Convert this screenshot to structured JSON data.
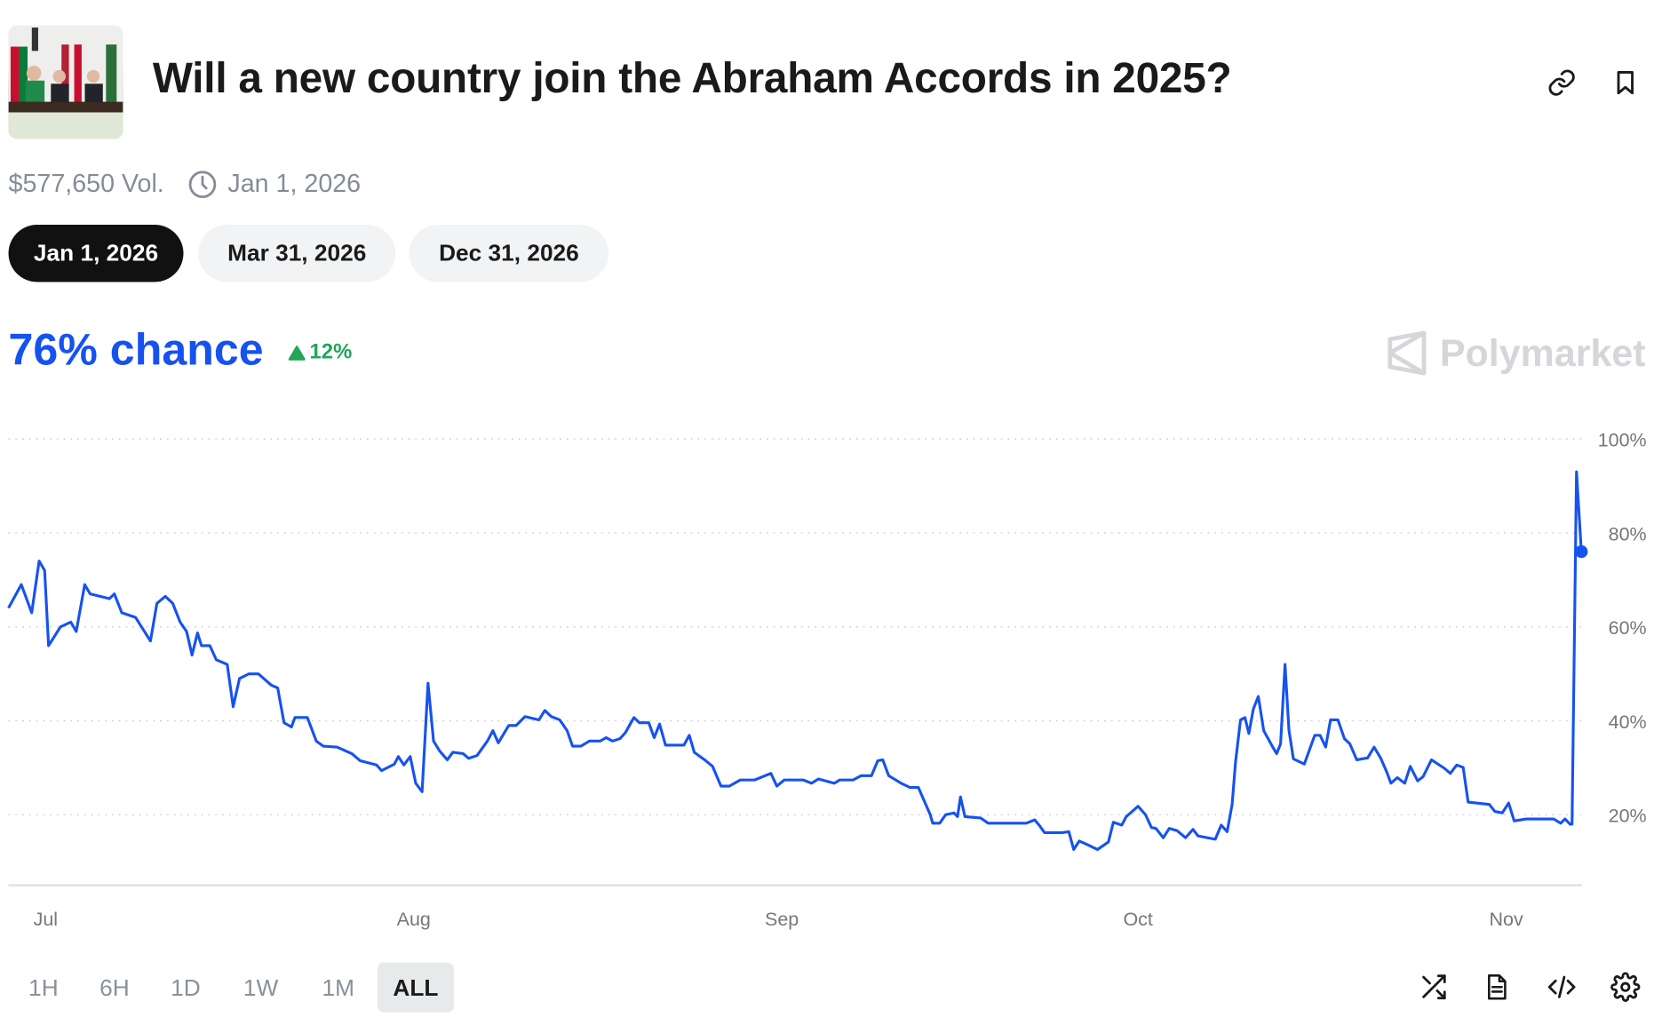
{
  "header": {
    "title": "Will a new country join the Abraham Accords in 2025?",
    "volume": "$577,650 Vol.",
    "end_date": "Jan 1, 2026",
    "icons": [
      "link-icon",
      "bookmark-icon",
      "clock-icon"
    ]
  },
  "date_options": [
    {
      "label": "Jan 1, 2026",
      "active": true
    },
    {
      "label": "Mar 31, 2026",
      "active": false
    },
    {
      "label": "Dec 31, 2026",
      "active": false
    }
  ],
  "summary": {
    "chance": "76% chance",
    "change": "12%",
    "change_direction": "up",
    "brand": "Polymarket"
  },
  "colors": {
    "line": "#1652f0",
    "up": "#23a55a",
    "grid": "#d0d0d0"
  },
  "time_ranges": [
    {
      "label": "1H",
      "active": false
    },
    {
      "label": "6H",
      "active": false
    },
    {
      "label": "1D",
      "active": false
    },
    {
      "label": "1W",
      "active": false
    },
    {
      "label": "1M",
      "active": false
    },
    {
      "label": "ALL",
      "active": true
    }
  ],
  "bottom_icons": [
    "shuffle-icon",
    "document-icon",
    "code-icon",
    "settings-icon"
  ],
  "chart_data": {
    "type": "line",
    "title": "",
    "xlabel": "",
    "ylabel": "",
    "x_ticks": [
      "Jul",
      "Aug",
      "Sep",
      "Oct",
      "Nov"
    ],
    "x_tick_dates": [
      "2025-07-01",
      "2025-08-01",
      "2025-09-01",
      "2025-10-01",
      "2025-11-01"
    ],
    "y_ticks": [
      "20%",
      "40%",
      "60%",
      "80%",
      "100%"
    ],
    "y_tick_values": [
      20,
      40,
      60,
      80,
      100
    ],
    "ylim": [
      5,
      100
    ],
    "xlim": [
      "2025-06-27T21:00",
      "2025-11-07T08:00"
    ],
    "grid": "horizontal dotted",
    "y_axis_position": "right",
    "last_value": 76,
    "series": [
      {
        "color": "#1652f0",
        "points": [
          [
            "2025-06-27T21:00",
            64
          ],
          [
            "2025-06-28T23:00",
            69
          ],
          [
            "2025-06-29T20:00",
            63
          ],
          [
            "2025-06-30T11:00",
            74
          ],
          [
            "2025-06-30T22:00",
            72
          ],
          [
            "2025-07-01T06:00",
            56
          ],
          [
            "2025-07-02T06:00",
            60
          ],
          [
            "2025-07-03T03:00",
            61
          ],
          [
            "2025-07-03T14:00",
            59
          ],
          [
            "2025-07-04T07:00",
            69
          ],
          [
            "2025-07-04T18:00",
            67
          ],
          [
            "2025-07-06T09:00",
            66
          ],
          [
            "2025-07-06T19:00",
            67
          ],
          [
            "2025-07-07T10:00",
            63
          ],
          [
            "2025-07-08T14:00",
            62
          ],
          [
            "2025-07-09T20:00",
            57
          ],
          [
            "2025-07-10T09:00",
            65
          ],
          [
            "2025-07-11T02:00",
            66.5
          ],
          [
            "2025-07-11T17:00",
            65
          ],
          [
            "2025-07-12T08:00",
            61
          ],
          [
            "2025-07-12T21:00",
            59
          ],
          [
            "2025-07-13T08:00",
            54
          ],
          [
            "2025-07-13T19:00",
            58.7
          ],
          [
            "2025-07-14T03:00",
            56
          ],
          [
            "2025-07-14T20:00",
            56
          ],
          [
            "2025-07-15T09:00",
            53
          ],
          [
            "2025-07-16T07:00",
            52
          ],
          [
            "2025-07-16T19:00",
            43
          ],
          [
            "2025-07-17T08:00",
            49
          ],
          [
            "2025-07-18T03:00",
            50
          ],
          [
            "2025-07-18T22:00",
            50
          ],
          [
            "2025-07-20T00:00",
            47.6
          ],
          [
            "2025-07-20T13:00",
            47
          ],
          [
            "2025-07-21T02:00",
            39.6
          ],
          [
            "2025-07-21T17:00",
            38.7
          ],
          [
            "2025-07-22T00:00",
            40.7
          ],
          [
            "2025-07-23T01:00",
            40.7
          ],
          [
            "2025-07-23T19:00",
            35.7
          ],
          [
            "2025-07-24T09:00",
            34.6
          ],
          [
            "2025-07-25T13:00",
            34.4
          ],
          [
            "2025-07-26T19:00",
            33
          ],
          [
            "2025-07-27T12:00",
            31.5
          ],
          [
            "2025-07-28T21:00",
            30.6
          ],
          [
            "2025-07-29T07:00",
            29.4
          ],
          [
            "2025-07-30T09:00",
            30.8
          ],
          [
            "2025-07-30T17:00",
            32.4
          ],
          [
            "2025-07-31T04:00",
            30.6
          ],
          [
            "2025-07-31T17:00",
            32.4
          ],
          [
            "2025-08-01T04:00",
            26.7
          ],
          [
            "2025-08-01T17:00",
            24.9
          ],
          [
            "2025-08-02T05:00",
            48
          ],
          [
            "2025-08-02T16:00",
            35.7
          ],
          [
            "2025-08-03T05:00",
            33.5
          ],
          [
            "2025-08-03T20:00",
            31.7
          ],
          [
            "2025-08-04T07:00",
            33.3
          ],
          [
            "2025-08-05T04:00",
            33
          ],
          [
            "2025-08-05T15:00",
            32
          ],
          [
            "2025-08-06T08:00",
            32.6
          ],
          [
            "2025-08-07T05:00",
            35.7
          ],
          [
            "2025-08-07T16:00",
            37.9
          ],
          [
            "2025-08-08T03:00",
            35.3
          ],
          [
            "2025-08-09T00:00",
            39
          ],
          [
            "2025-08-09T15:00",
            39
          ],
          [
            "2025-08-10T09:00",
            40.9
          ],
          [
            "2025-08-11T13:00",
            40.2
          ],
          [
            "2025-08-12T01:00",
            42.2
          ],
          [
            "2025-08-12T14:00",
            40.9
          ],
          [
            "2025-08-13T07:00",
            40.2
          ],
          [
            "2025-08-13T22:00",
            37.9
          ],
          [
            "2025-08-14T09:00",
            34.6
          ],
          [
            "2025-08-15T02:00",
            34.6
          ],
          [
            "2025-08-15T19:00",
            35.7
          ],
          [
            "2025-08-16T17:00",
            35.7
          ],
          [
            "2025-08-17T05:00",
            36.4
          ],
          [
            "2025-08-17T18:00",
            35.7
          ],
          [
            "2025-08-18T09:00",
            36.2
          ],
          [
            "2025-08-18T20:00",
            37.5
          ],
          [
            "2025-08-19T13:00",
            40.7
          ],
          [
            "2025-08-20T00:00",
            39.6
          ],
          [
            "2025-08-20T19:00",
            39.6
          ],
          [
            "2025-08-21T06:00",
            36.4
          ],
          [
            "2025-08-21T17:00",
            39.3
          ],
          [
            "2025-08-22T05:00",
            34.8
          ],
          [
            "2025-08-23T18:00",
            34.8
          ],
          [
            "2025-08-24T05:00",
            36.9
          ],
          [
            "2025-08-24T15:00",
            33.3
          ],
          [
            "2025-08-25T12:00",
            31.7
          ],
          [
            "2025-08-26T04:00",
            30.3
          ],
          [
            "2025-08-26T21:00",
            26.1
          ],
          [
            "2025-08-27T14:00",
            26.1
          ],
          [
            "2025-08-28T12:00",
            27.4
          ],
          [
            "2025-08-29T17:00",
            27.4
          ],
          [
            "2025-08-31T02:00",
            28.8
          ],
          [
            "2025-08-31T14:00",
            26.1
          ],
          [
            "2025-09-01T05:00",
            27.4
          ],
          [
            "2025-09-02T19:00",
            27.4
          ],
          [
            "2025-09-03T12:00",
            26.7
          ],
          [
            "2025-09-04T02:00",
            27.6
          ],
          [
            "2025-09-05T10:00",
            26.7
          ],
          [
            "2025-09-05T21:00",
            27.4
          ],
          [
            "2025-09-07T00:00",
            27.4
          ],
          [
            "2025-09-07T16:00",
            28.3
          ],
          [
            "2025-09-08T13:00",
            28.3
          ],
          [
            "2025-09-09T02:00",
            31.5
          ],
          [
            "2025-09-09T12:00",
            31.7
          ],
          [
            "2025-09-10T00:00",
            28.3
          ],
          [
            "2025-09-11T01:00",
            26.7
          ],
          [
            "2025-09-11T19:00",
            25.8
          ],
          [
            "2025-09-12T12:00",
            25.8
          ],
          [
            "2025-09-13T00:00",
            22.9
          ],
          [
            "2025-09-13T12:00",
            20
          ],
          [
            "2025-09-13T17:00",
            18.2
          ],
          [
            "2025-09-14T07:00",
            18.2
          ],
          [
            "2025-09-14T19:00",
            20
          ],
          [
            "2025-09-15T12:00",
            20.4
          ],
          [
            "2025-09-15T19:00",
            19.6
          ],
          [
            "2025-09-16T01:00",
            23.8
          ],
          [
            "2025-09-16T10:00",
            19.6
          ],
          [
            "2025-09-17T18:00",
            19.3
          ],
          [
            "2025-09-18T09:00",
            18.2
          ],
          [
            "2025-09-21T14:00",
            18.2
          ],
          [
            "2025-09-22T07:00",
            18.9
          ],
          [
            "2025-09-22T16:00",
            17.8
          ],
          [
            "2025-09-23T03:00",
            16.2
          ],
          [
            "2025-09-24T15:00",
            16.2
          ],
          [
            "2025-09-25T04:00",
            16.4
          ],
          [
            "2025-09-25T14:00",
            12.6
          ],
          [
            "2025-09-26T01:00",
            14.4
          ],
          [
            "2025-09-26T16:00",
            13.7
          ],
          [
            "2025-09-27T14:00",
            12.6
          ],
          [
            "2025-09-28T12:00",
            14.2
          ],
          [
            "2025-09-28T22:00",
            18.4
          ],
          [
            "2025-09-29T15:00",
            17.8
          ],
          [
            "2025-09-30T00:00",
            19.6
          ],
          [
            "2025-10-01T00:00",
            21.8
          ],
          [
            "2025-10-01T15:00",
            20
          ],
          [
            "2025-10-02T03:00",
            17.3
          ],
          [
            "2025-10-02T12:00",
            17.1
          ],
          [
            "2025-10-03T03:00",
            15.1
          ],
          [
            "2025-10-03T15:00",
            17.1
          ],
          [
            "2025-10-04T07:00",
            16.6
          ],
          [
            "2025-10-05T00:00",
            15.1
          ],
          [
            "2025-10-05T15:00",
            16.9
          ],
          [
            "2025-10-06T01:00",
            15.5
          ],
          [
            "2025-10-07T12:00",
            14.8
          ],
          [
            "2025-10-08T00:00",
            17.8
          ],
          [
            "2025-10-08T12:00",
            16.4
          ],
          [
            "2025-10-08T22:00",
            22.2
          ],
          [
            "2025-10-09T05:00",
            31.2
          ],
          [
            "2025-10-09T15:00",
            40.2
          ],
          [
            "2025-10-10T00:00",
            40.7
          ],
          [
            "2025-10-10T08:00",
            37.3
          ],
          [
            "2025-10-10T17:00",
            42.5
          ],
          [
            "2025-10-11T03:00",
            45.2
          ],
          [
            "2025-10-11T14:00",
            37.9
          ],
          [
            "2025-10-12T07:00",
            34.6
          ],
          [
            "2025-10-12T16:00",
            33
          ],
          [
            "2025-10-13T00:00",
            35.1
          ],
          [
            "2025-10-13T09:00",
            52
          ],
          [
            "2025-10-13T17:00",
            38
          ],
          [
            "2025-10-14T02:00",
            31.9
          ],
          [
            "2025-10-15T00:00",
            30.8
          ],
          [
            "2025-10-15T21:00",
            36.9
          ],
          [
            "2025-10-16T08:00",
            36.9
          ],
          [
            "2025-10-16T19:00",
            34.4
          ],
          [
            "2025-10-17T05:00",
            40.2
          ],
          [
            "2025-10-17T20:00",
            40.2
          ],
          [
            "2025-10-18T09:00",
            36.2
          ],
          [
            "2025-10-18T20:00",
            35.1
          ],
          [
            "2025-10-19T10:00",
            31.7
          ],
          [
            "2025-10-20T08:00",
            32.1
          ],
          [
            "2025-10-20T21:00",
            34.4
          ],
          [
            "2025-10-21T10:00",
            32.1
          ],
          [
            "2025-10-21T23:00",
            29
          ],
          [
            "2025-10-22T07:00",
            26.7
          ],
          [
            "2025-10-22T20:00",
            27.9
          ],
          [
            "2025-10-23T11:00",
            26.7
          ],
          [
            "2025-10-23T22:00",
            30.3
          ],
          [
            "2025-10-24T13:00",
            27.2
          ],
          [
            "2025-10-25T00:00",
            28.1
          ],
          [
            "2025-10-25T17:00",
            31.7
          ],
          [
            "2025-10-26T19:00",
            29.9
          ],
          [
            "2025-10-27T07:00",
            28.8
          ],
          [
            "2025-10-27T20:00",
            30.6
          ],
          [
            "2025-10-28T09:00",
            30.1
          ],
          [
            "2025-10-28T19:00",
            22.7
          ],
          [
            "2025-10-30T14:00",
            22.2
          ],
          [
            "2025-10-31T01:00",
            20.7
          ],
          [
            "2025-10-31T16:00",
            20.4
          ],
          [
            "2025-11-01T05:00",
            22.5
          ],
          [
            "2025-11-01T16:00",
            18.7
          ],
          [
            "2025-11-02T17:00",
            19.1
          ],
          [
            "2025-11-05T00:00",
            19.1
          ],
          [
            "2025-11-05T14:00",
            18.2
          ],
          [
            "2025-11-05T23:00",
            19.1
          ],
          [
            "2025-11-06T09:00",
            18
          ],
          [
            "2025-11-06T13:00",
            18
          ],
          [
            "2025-11-06T22:00",
            93
          ],
          [
            "2025-11-07T08:00",
            76
          ]
        ]
      }
    ]
  }
}
